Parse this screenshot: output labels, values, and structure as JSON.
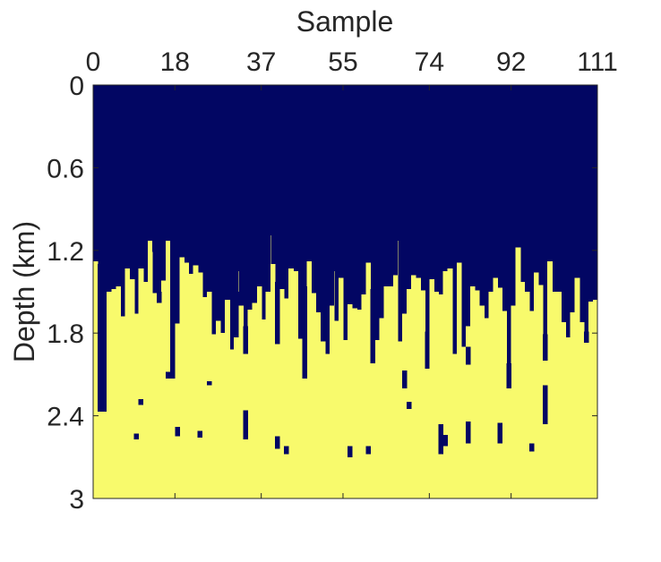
{
  "chart_data": {
    "type": "heatmap",
    "title": "",
    "xlabel": "Sample",
    "ylabel": "Depth (km)",
    "x_axis_position": "top",
    "xlim": [
      0,
      111
    ],
    "ylim": [
      0,
      3
    ],
    "y_reversed": true,
    "xticks": [
      0,
      18,
      37,
      55,
      74,
      92,
      111
    ],
    "xtick_labels": [
      "0",
      "18",
      "37",
      "55",
      "74",
      "92",
      "111"
    ],
    "yticks": [
      0,
      0.6,
      1.2,
      1.8,
      2.4,
      3
    ],
    "ytick_labels": [
      "0",
      "0.6",
      "1.2",
      "1.8",
      "2.4",
      "3"
    ],
    "grid": false,
    "legend": "none",
    "colormap": {
      "low": "#020663",
      "high": "#f8fa6c"
    },
    "n_columns": 111,
    "interface_depth_km": [
      1.28,
      1.3,
      2.37,
      1.5,
      1.48,
      1.46,
      1.68,
      1.33,
      1.41,
      1.66,
      1.33,
      1.43,
      1.13,
      1.51,
      1.56,
      1.42,
      1.13,
      2.13,
      1.73,
      1.25,
      1.29,
      1.37,
      1.31,
      1.36,
      1.54,
      1.5,
      1.81,
      1.71,
      1.8,
      1.56,
      1.92,
      1.35,
      1.5,
      1.75,
      1.63,
      1.36,
      1.46,
      1.7,
      1.09,
      1.3,
      1.43,
      1.48,
      1.55,
      1.33,
      1.35,
      1.84,
      1.46,
      1.28,
      1.51,
      1.65,
      1.86,
      1.95,
      1.35,
      1.71,
      1.18,
      1.85,
      1.59,
      1.62,
      1.63,
      1.52,
      1.29,
      1.48,
      1.85,
      1.69,
      1.46,
      1.46,
      1.13,
      1.86,
      1.66,
      1.48,
      1.38,
      1.4,
      1.49,
      1.79,
      1.41,
      1.5,
      1.52,
      1.35,
      1.33,
      1.95,
      1.29,
      1.9,
      1.75,
      1.46,
      1.49,
      1.6,
      1.69,
      1.5,
      1.4,
      1.47,
      1.64,
      2.02,
      1.6,
      1.18,
      1.43,
      1.33,
      1.64,
      1.36,
      1.45,
      1.81,
      1.28,
      1.5,
      1.5,
      1.72,
      1.83,
      1.65,
      1.4,
      1.72,
      1.79,
      1.57,
      1.56
    ],
    "inclusions": [
      {
        "col": 1,
        "depth_start_km": 1.3,
        "depth_end_km": 2.37
      },
      {
        "col": 13,
        "depth_start_km": 1.13,
        "depth_end_km": 1.21
      },
      {
        "col": 14,
        "depth_start_km": 1.5,
        "depth_end_km": 1.58
      },
      {
        "col": 17,
        "depth_start_km": 1.13,
        "depth_end_km": 2.13
      },
      {
        "col": 23,
        "depth_start_km": 2.51,
        "depth_end_km": 2.56
      },
      {
        "col": 25,
        "depth_start_km": 2.15,
        "depth_end_km": 2.18
      },
      {
        "col": 31,
        "depth_start_km": 1.35,
        "depth_end_km": 1.83
      },
      {
        "col": 32,
        "depth_start_km": 1.5,
        "depth_end_km": 1.6
      },
      {
        "col": 33,
        "depth_start_km": 1.75,
        "depth_end_km": 1.95
      },
      {
        "col": 35,
        "depth_start_km": 1.36,
        "depth_end_km": 1.58
      },
      {
        "col": 38,
        "depth_start_km": 1.09,
        "depth_end_km": 1.5
      },
      {
        "col": 40,
        "depth_start_km": 1.43,
        "depth_end_km": 1.88
      },
      {
        "col": 46,
        "depth_start_km": 1.46,
        "depth_end_km": 2.13
      },
      {
        "col": 52,
        "depth_start_km": 1.35,
        "depth_end_km": 1.6
      },
      {
        "col": 54,
        "depth_start_km": 1.18,
        "depth_end_km": 1.4
      },
      {
        "col": 61,
        "depth_start_km": 1.48,
        "depth_end_km": 2.02
      },
      {
        "col": 66,
        "depth_start_km": 1.13,
        "depth_end_km": 1.38
      },
      {
        "col": 73,
        "depth_start_km": 1.79,
        "depth_end_km": 2.06
      },
      {
        "col": 82,
        "depth_start_km": 1.9,
        "depth_end_km": 2.03
      },
      {
        "col": 91,
        "depth_start_km": 2.02,
        "depth_end_km": 2.2
      },
      {
        "col": 95,
        "depth_start_km": 1.33,
        "depth_end_km": 1.5
      },
      {
        "col": 99,
        "depth_start_km": 1.81,
        "depth_end_km": 2.0
      },
      {
        "col": 108,
        "depth_start_km": 1.79,
        "depth_end_km": 1.87
      },
      {
        "col": 10,
        "depth_start_km": 2.28,
        "depth_end_km": 2.32
      },
      {
        "col": 16,
        "depth_start_km": 2.08,
        "depth_end_km": 2.13
      },
      {
        "col": 18,
        "depth_start_km": 2.48,
        "depth_end_km": 2.55
      },
      {
        "col": 33,
        "depth_start_km": 2.36,
        "depth_end_km": 2.57
      },
      {
        "col": 40,
        "depth_start_km": 2.55,
        "depth_end_km": 2.64
      },
      {
        "col": 56,
        "depth_start_km": 2.62,
        "depth_end_km": 2.7
      },
      {
        "col": 60,
        "depth_start_km": 2.62,
        "depth_end_km": 2.68
      },
      {
        "col": 68,
        "depth_start_km": 2.07,
        "depth_end_km": 2.2
      },
      {
        "col": 69,
        "depth_start_km": 2.3,
        "depth_end_km": 2.35
      },
      {
        "col": 76,
        "depth_start_km": 2.46,
        "depth_end_km": 2.68
      },
      {
        "col": 77,
        "depth_start_km": 2.54,
        "depth_end_km": 2.62
      },
      {
        "col": 82,
        "depth_start_km": 2.44,
        "depth_end_km": 2.6
      },
      {
        "col": 89,
        "depth_start_km": 2.45,
        "depth_end_km": 2.6
      },
      {
        "col": 96,
        "depth_start_km": 2.6,
        "depth_end_km": 2.66
      },
      {
        "col": 99,
        "depth_start_km": 2.18,
        "depth_end_km": 2.46
      },
      {
        "col": 9,
        "depth_start_km": 2.53,
        "depth_end_km": 2.57
      },
      {
        "col": 42,
        "depth_start_km": 2.62,
        "depth_end_km": 2.68
      }
    ]
  }
}
